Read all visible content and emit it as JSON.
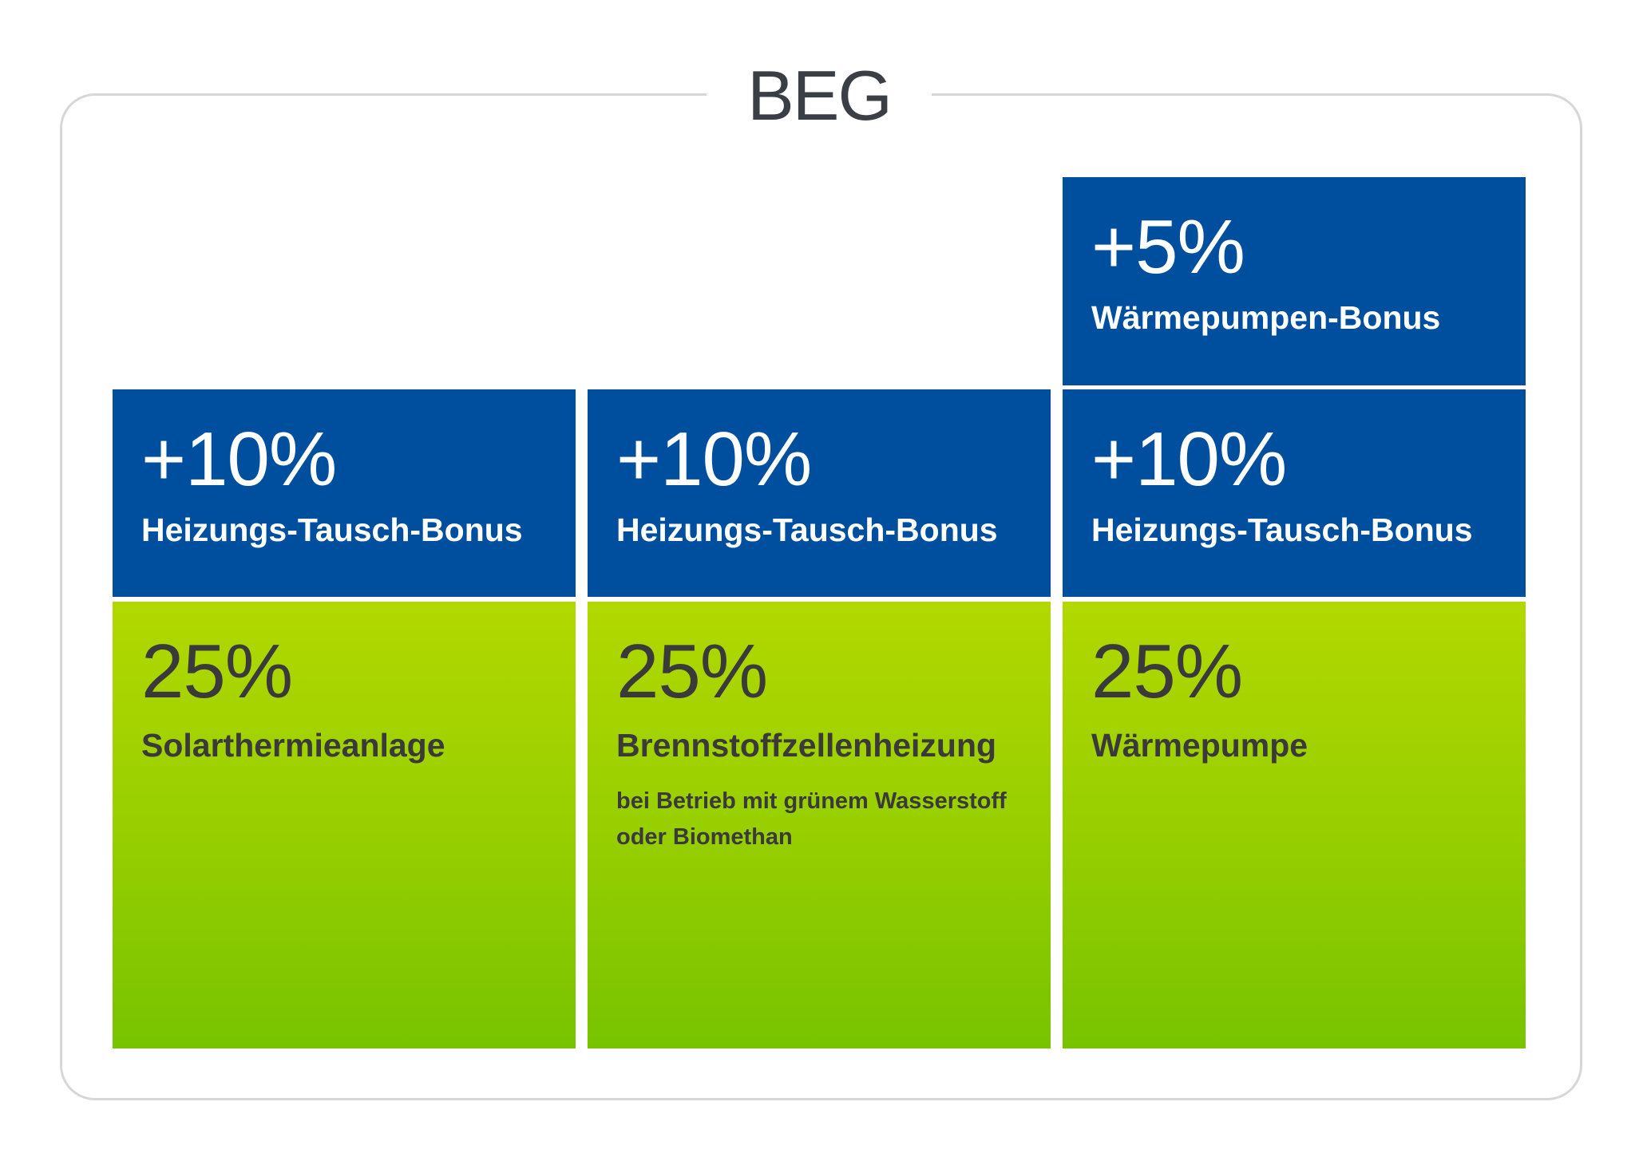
{
  "title": "BEG",
  "colors": {
    "blue": "#004f9f",
    "green_top": "#b2d800",
    "green_bottom": "#78c300",
    "frame_border": "#d7d7d7",
    "title_text": "#3a3f45"
  },
  "columns": [
    {
      "base": {
        "percent": "25%",
        "label": "Solarthermieanlage",
        "note": ""
      },
      "bonuses": [
        {
          "percent": "+10%",
          "label": "Heizungs-Tausch-Bonus"
        }
      ]
    },
    {
      "base": {
        "percent": "25%",
        "label": "Brennstoffzellenheizung",
        "note": "bei Betrieb mit grünem Wasserstoff oder Biomethan"
      },
      "bonuses": [
        {
          "percent": "+10%",
          "label": "Heizungs-Tausch-Bonus"
        }
      ]
    },
    {
      "base": {
        "percent": "25%",
        "label": "Wärmepumpe",
        "note": ""
      },
      "bonuses": [
        {
          "percent": "+10%",
          "label": "Heizungs-Tausch-Bonus"
        },
        {
          "percent": "+5%",
          "label": "Wärmepumpen-Bonus"
        }
      ]
    }
  ]
}
